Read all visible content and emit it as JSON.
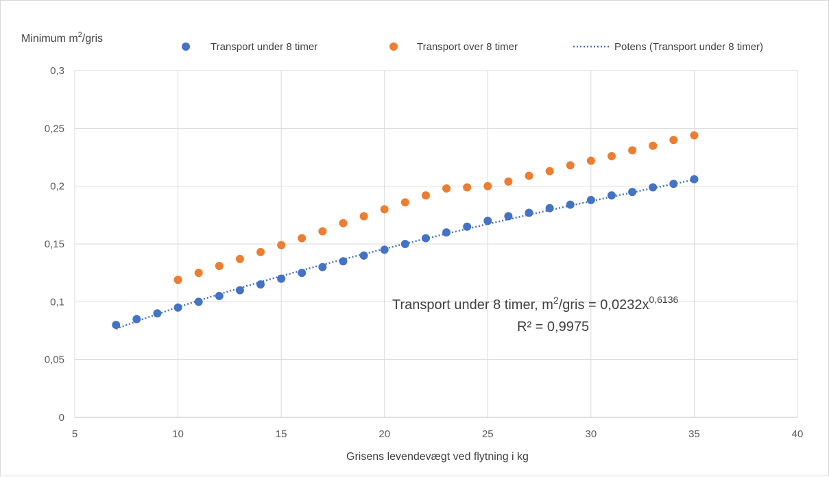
{
  "chart_data": {
    "type": "scatter",
    "ylabel": {
      "prefix": "Minimum m",
      "sup": "2",
      "suffix": "/gris"
    },
    "xlabel": "Grisens levendevægt ved flytning i kg",
    "xlim": [
      5,
      40
    ],
    "ylim": [
      0,
      0.3
    ],
    "x_ticks": [
      5,
      10,
      15,
      20,
      25,
      30,
      35,
      40
    ],
    "x_tick_labels": [
      "5",
      "10",
      "15",
      "20",
      "25",
      "30",
      "35",
      "40"
    ],
    "y_ticks": [
      0,
      0.05,
      0.1,
      0.15,
      0.2,
      0.25,
      0.3
    ],
    "y_tick_labels": [
      "0",
      "0,05",
      "0,1",
      "0,15",
      "0,2",
      "0,25",
      "0,3"
    ],
    "grid": true,
    "legend_position": "top",
    "series": [
      {
        "name": "Transport under 8 timer",
        "color": "#4472c4",
        "x": [
          7,
          8,
          9,
          10,
          11,
          12,
          13,
          14,
          15,
          16,
          17,
          18,
          19,
          20,
          21,
          22,
          23,
          24,
          25,
          26,
          27,
          28,
          29,
          30,
          31,
          32,
          33,
          34,
          35
        ],
        "y": [
          0.08,
          0.085,
          0.09,
          0.095,
          0.1,
          0.105,
          0.11,
          0.115,
          0.12,
          0.125,
          0.13,
          0.135,
          0.14,
          0.145,
          0.15,
          0.155,
          0.16,
          0.165,
          0.17,
          0.174,
          0.177,
          0.181,
          0.184,
          0.188,
          0.192,
          0.195,
          0.199,
          0.202,
          0.206
        ]
      },
      {
        "name": "Transport over 8 timer",
        "color": "#ed7d31",
        "x": [
          10,
          11,
          12,
          13,
          14,
          15,
          16,
          17,
          18,
          19,
          20,
          21,
          22,
          23,
          24,
          25,
          26,
          27,
          28,
          29,
          30,
          31,
          32,
          33,
          34,
          35
        ],
        "y": [
          0.119,
          0.125,
          0.131,
          0.137,
          0.143,
          0.149,
          0.155,
          0.161,
          0.168,
          0.174,
          0.18,
          0.186,
          0.192,
          0.198,
          0.199,
          0.2,
          0.204,
          0.209,
          0.213,
          0.218,
          0.222,
          0.226,
          0.231,
          0.235,
          0.24,
          0.244
        ]
      }
    ],
    "trendline": {
      "name": "Potens (Transport under 8 timer)",
      "type": "power",
      "coefficient": 0.0232,
      "exponent": 0.6136,
      "x_range": [
        7,
        35
      ],
      "color": "#4472c4",
      "style": "dotted"
    },
    "annotation": {
      "line1_prefix": "Transport under 8 timer, m",
      "line1_sup1": "2",
      "line1_mid": "/gris = 0,0232x",
      "line1_sup2": "0,6136",
      "line2": "R² = 0,9975"
    }
  }
}
